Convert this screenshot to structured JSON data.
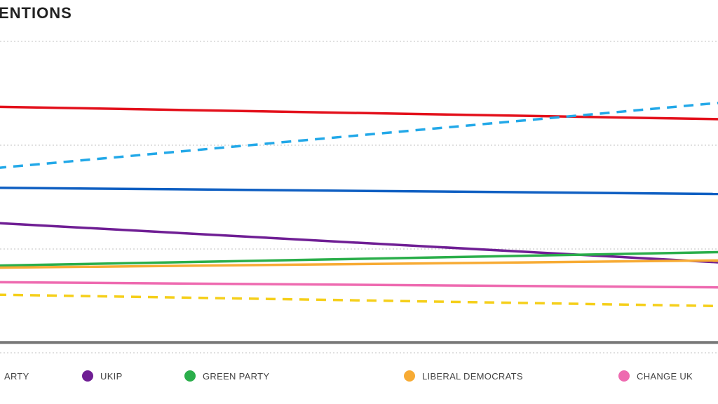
{
  "chart_data": {
    "type": "line",
    "title": "ENTIONS",
    "xlabel": "",
    "ylabel": "",
    "ylim": [
      0,
      30
    ],
    "grid": true,
    "gridlines_y": [
      0,
      10,
      20,
      30
    ],
    "legend_placement": "bottom",
    "series": [
      {
        "color": "#e3101b",
        "style": "solid",
        "values": [
          23.7,
          22.5
        ]
      },
      {
        "color": "#22a8e8",
        "style": "dashed",
        "values": [
          17.8,
          24.1
        ]
      },
      {
        "color": "#0f5fc2",
        "style": "solid",
        "values": [
          15.9,
          15.3
        ]
      },
      {
        "name": "UKIP",
        "color": "#6f1e94",
        "style": "solid",
        "values": [
          12.5,
          8.7
        ]
      },
      {
        "name": "GREEN PARTY",
        "color": "#2aae4a",
        "style": "solid",
        "values": [
          8.4,
          9.7
        ]
      },
      {
        "name": "LIBERAL DEMOCRATS",
        "color": "#f7ab34",
        "style": "solid",
        "values": [
          8.2,
          8.9
        ]
      },
      {
        "name": "CHANGE UK",
        "color": "#ee6ab0",
        "style": "solid",
        "values": [
          6.8,
          6.3
        ]
      },
      {
        "color": "#f5cf1a",
        "style": "dashed",
        "values": [
          5.6,
          4.5
        ]
      },
      {
        "color": "#777777",
        "style": "solid",
        "values": [
          1.0,
          1.0
        ]
      }
    ]
  },
  "legend": [
    {
      "label": "ARTY",
      "color": "#e3101b",
      "cropped": true
    },
    {
      "label": "UKIP",
      "color": "#6f1e94"
    },
    {
      "label": "GREEN PARTY",
      "color": "#2aae4a"
    },
    {
      "label": "LIBERAL DEMOCRATS",
      "color": "#f7ab34"
    },
    {
      "label": "CHANGE UK",
      "color": "#ee6ab0"
    }
  ]
}
